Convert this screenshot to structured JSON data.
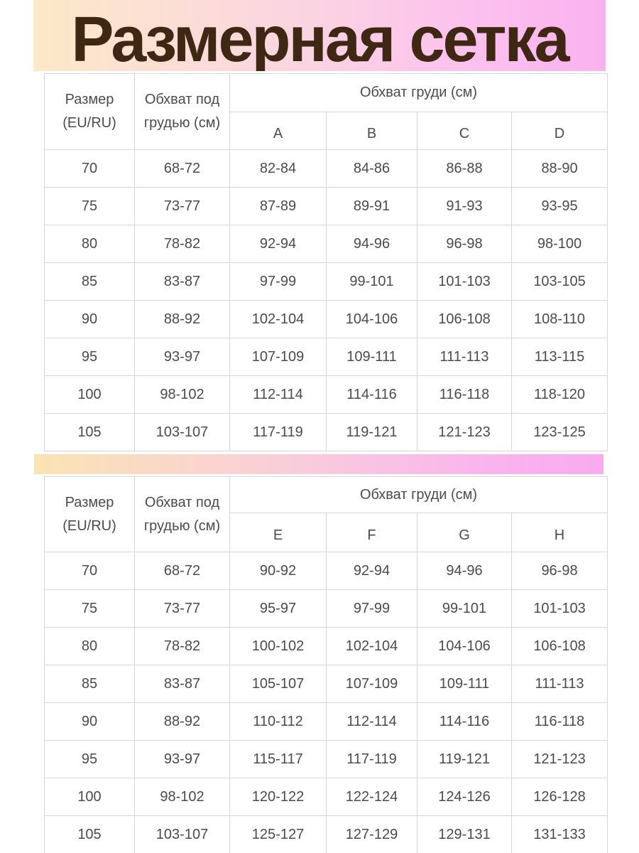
{
  "page": {
    "title": "Размерная сетка"
  },
  "colors": {
    "banner_gradient_left": "#fce9c8",
    "banner_gradient_mid": "#fbd3e3",
    "banner_gradient_right": "#fab2ee",
    "title_text": "#3e2713",
    "table_border": "#d6d6d6",
    "cell_text": "#4b4b4b",
    "background": "#ffffff"
  },
  "tables": [
    {
      "size_header_line1": "Размер",
      "size_header_line2": "(EU/RU)",
      "underbust_header_line1": "Обхват под",
      "underbust_header_line2": "грудью (см)",
      "bust_group_header": "Обхват груди (см)",
      "cups": [
        "A",
        "B",
        "C",
        "D"
      ],
      "rows": [
        [
          "70",
          "68-72",
          "82-84",
          "84-86",
          "86-88",
          "88-90"
        ],
        [
          "75",
          "73-77",
          "87-89",
          "89-91",
          "91-93",
          "93-95"
        ],
        [
          "80",
          "78-82",
          "92-94",
          "94-96",
          "96-98",
          "98-100"
        ],
        [
          "85",
          "83-87",
          "97-99",
          "99-101",
          "101-103",
          "103-105"
        ],
        [
          "90",
          "88-92",
          "102-104",
          "104-106",
          "106-108",
          "108-110"
        ],
        [
          "95",
          "93-97",
          "107-109",
          "109-111",
          "111-113",
          "113-115"
        ],
        [
          "100",
          "98-102",
          "112-114",
          "114-116",
          "116-118",
          "118-120"
        ],
        [
          "105",
          "103-107",
          "117-119",
          "119-121",
          "121-123",
          "123-125"
        ]
      ]
    },
    {
      "size_header_line1": "Размер",
      "size_header_line2": "(EU/RU)",
      "underbust_header_line1": "Обхват под",
      "underbust_header_line2": "грудью (см)",
      "bust_group_header": "Обхват груди (см)",
      "cups": [
        "E",
        "F",
        "G",
        "H"
      ],
      "rows": [
        [
          "70",
          "68-72",
          "90-92",
          "92-94",
          "94-96",
          "96-98"
        ],
        [
          "75",
          "73-77",
          "95-97",
          "97-99",
          "99-101",
          "101-103"
        ],
        [
          "80",
          "78-82",
          "100-102",
          "102-104",
          "104-106",
          "106-108"
        ],
        [
          "85",
          "83-87",
          "105-107",
          "107-109",
          "109-111",
          "111-113"
        ],
        [
          "90",
          "88-92",
          "110-112",
          "112-114",
          "114-116",
          "116-118"
        ],
        [
          "95",
          "93-97",
          "115-117",
          "117-119",
          "119-121",
          "121-123"
        ],
        [
          "100",
          "98-102",
          "120-122",
          "122-124",
          "124-126",
          "126-128"
        ],
        [
          "105",
          "103-107",
          "125-127",
          "127-129",
          "129-131",
          "131-133"
        ]
      ]
    }
  ]
}
